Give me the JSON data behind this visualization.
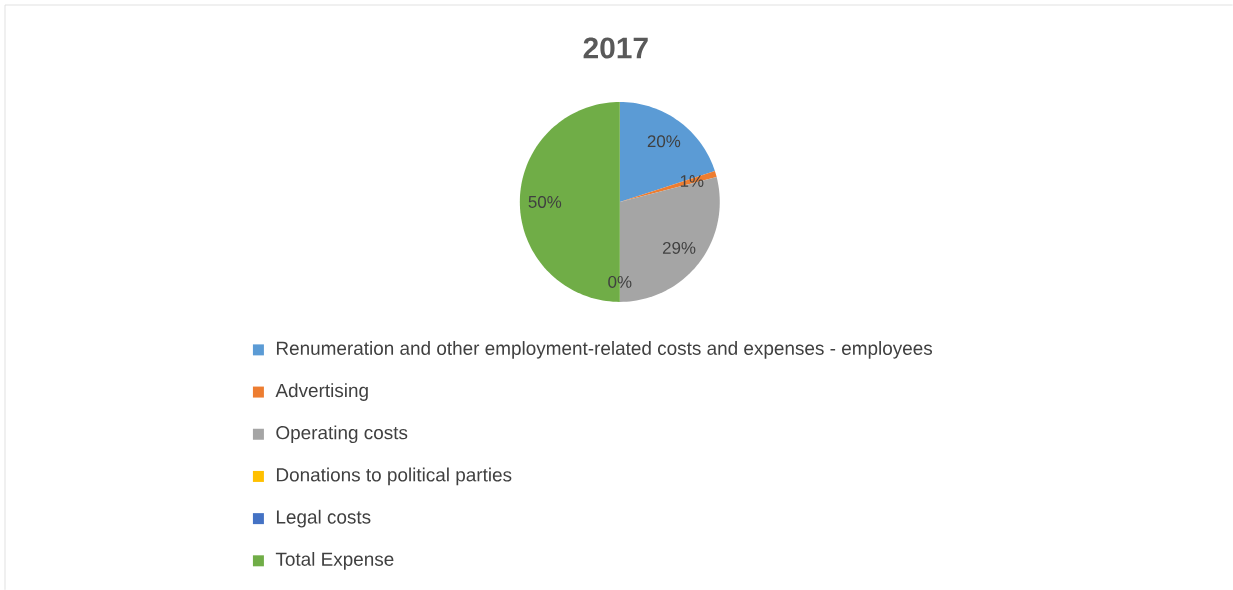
{
  "chart_data": {
    "type": "pie",
    "title": "2017",
    "categories": [
      "Renumeration and other employment-related costs and expenses - employees",
      "Advertising",
      "Operating costs",
      "Donations to political parties",
      "Legal costs",
      "Total Expense"
    ],
    "values": [
      20,
      1,
      29,
      0,
      0,
      50
    ],
    "colors": [
      "#5b9bd5",
      "#ed7d31",
      "#a5a5a5",
      "#ffc000",
      "#4472c4",
      "#70ad47"
    ],
    "value_labels": [
      "20%",
      "1%",
      "29%",
      "0%",
      null,
      "50%"
    ],
    "legend": "bottom"
  }
}
